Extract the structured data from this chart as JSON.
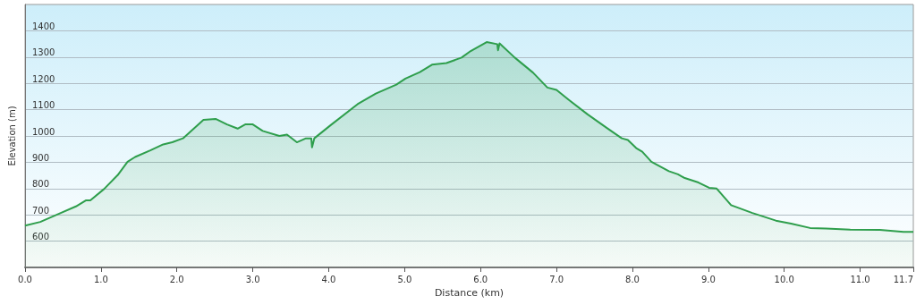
{
  "chart_data": {
    "type": "area",
    "xlabel": "Distance (km)",
    "ylabel": "Elevation (m)",
    "x": [
      0,
      0.2,
      0.47,
      0.67,
      0.8,
      0.86,
      1.04,
      1.22,
      1.35,
      1.45,
      1.65,
      1.82,
      1.94,
      2.08,
      2.35,
      2.51,
      2.66,
      2.8,
      2.9,
      3.0,
      3.13,
      3.35,
      3.45,
      3.58,
      3.7,
      3.77,
      3.78,
      3.81,
      4.03,
      4.38,
      4.62,
      4.89,
      5.01,
      5.2,
      5.36,
      5.55,
      5.75,
      5.87,
      6.08,
      6.22,
      6.23,
      6.25,
      6.45,
      6.69,
      6.88,
      7.0,
      7.16,
      7.41,
      7.66,
      7.86,
      7.94,
      8.05,
      8.13,
      8.25,
      8.48,
      8.6,
      8.68,
      8.87,
      9.01,
      9.11,
      9.3,
      9.58,
      9.89,
      10.09,
      10.34,
      10.55,
      10.87,
      11.26,
      11.57,
      11.7
    ],
    "series": [
      {
        "color": "#2e9e4c",
        "values": [
          659,
          673,
          707,
          732,
          755,
          755,
          798,
          851,
          902,
          920,
          945,
          968,
          976,
          991,
          1061,
          1065,
          1044,
          1028,
          1044,
          1044,
          1019,
          1000,
          1005,
          976,
          991,
          991,
          957,
          991,
          1042,
          1121,
          1161,
          1195,
          1218,
          1243,
          1271,
          1277,
          1298,
          1323,
          1357,
          1349,
          1326,
          1352,
          1298,
          1241,
          1184,
          1175,
          1138,
          1082,
          1031,
          991,
          985,
          954,
          940,
          902,
          866,
          854,
          841,
          823,
          803,
          800,
          737,
          707,
          678,
          667,
          650,
          648,
          644,
          643,
          635,
          635
        ]
      }
    ],
    "xlim": [
      0,
      11.7
    ],
    "xticks": [
      {
        "value": 0,
        "label": "0.0"
      },
      {
        "value": 1,
        "label": "1.0"
      },
      {
        "value": 2,
        "label": "2.0"
      },
      {
        "value": 3,
        "label": "3.0"
      },
      {
        "value": 4,
        "label": "4.0"
      },
      {
        "value": 5,
        "label": "5.0"
      },
      {
        "value": 6,
        "label": "6.0"
      },
      {
        "value": 7,
        "label": "7.0"
      },
      {
        "value": 8,
        "label": "8.0"
      },
      {
        "value": 9,
        "label": "9.0"
      },
      {
        "value": 10,
        "label": "10.0"
      },
      {
        "value": 11,
        "label": "11.0"
      },
      11.7
    ],
    "ylim": [
      500,
      1500
    ],
    "yticks": [
      600,
      700,
      800,
      900,
      1000,
      1100,
      1200,
      1300,
      1400
    ],
    "grid": "y",
    "marker": "none"
  }
}
